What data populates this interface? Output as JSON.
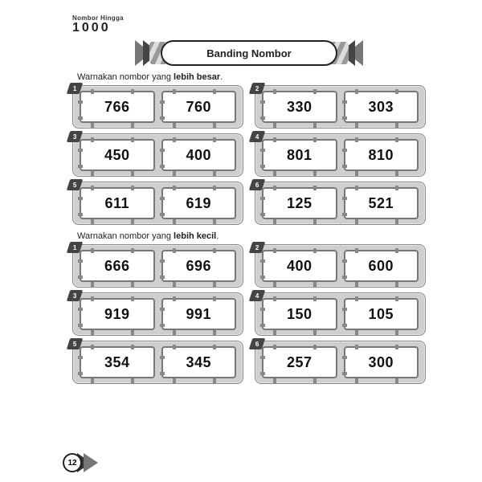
{
  "header": {
    "label": "Nombor Hingga",
    "number": "1000"
  },
  "banner_title": "Banding Nombor",
  "section1": {
    "instruction_prefix": "Warnakan nombor yang ",
    "instruction_bold": "lebih besar",
    "pairs": [
      {
        "idx": "1",
        "a": "766",
        "b": "760"
      },
      {
        "idx": "2",
        "a": "330",
        "b": "303"
      },
      {
        "idx": "3",
        "a": "450",
        "b": "400"
      },
      {
        "idx": "4",
        "a": "801",
        "b": "810"
      },
      {
        "idx": "5",
        "a": "611",
        "b": "619"
      },
      {
        "idx": "6",
        "a": "125",
        "b": "521"
      }
    ]
  },
  "section2": {
    "instruction_prefix": "Warnakan nombor yang ",
    "instruction_bold": "lebih kecil",
    "pairs": [
      {
        "idx": "1",
        "a": "666",
        "b": "696"
      },
      {
        "idx": "2",
        "a": "400",
        "b": "600"
      },
      {
        "idx": "3",
        "a": "919",
        "b": "991"
      },
      {
        "idx": "4",
        "a": "150",
        "b": "105"
      },
      {
        "idx": "5",
        "a": "354",
        "b": "345"
      },
      {
        "idx": "6",
        "a": "257",
        "b": "300"
      }
    ]
  },
  "page_number": "12",
  "colors": {
    "bg": "#ffffff",
    "panel": "#cfcfcf",
    "border": "#777777",
    "dark": "#333333"
  }
}
